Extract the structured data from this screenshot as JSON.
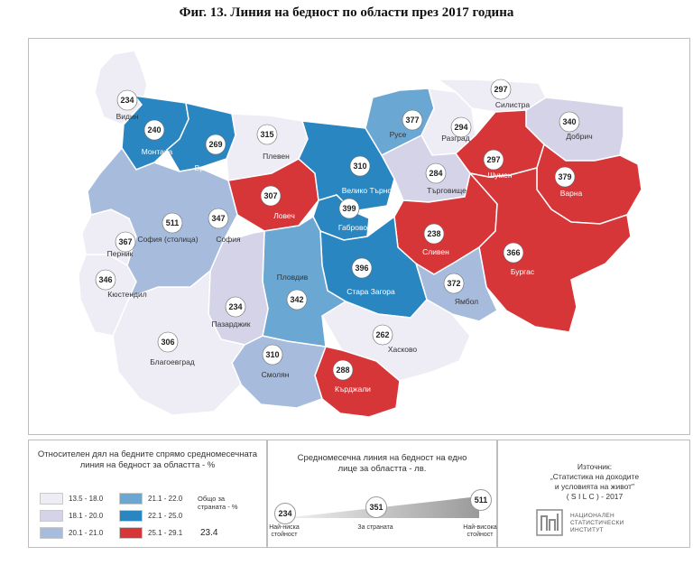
{
  "title": "Фиг. 13. Линия на бедност по области през 2017 година",
  "colors": {
    "c1": "#eeecf4",
    "c2": "#d4d3e8",
    "c3": "#a7bcdc",
    "c4": "#6ba7d3",
    "c5": "#2a86c0",
    "c6": "#d63638"
  },
  "regions": [
    {
      "name": "Видин",
      "value": "234",
      "cls": "c1"
    },
    {
      "name": "Монтана",
      "value": "240",
      "cls": "c5"
    },
    {
      "name": "Враца",
      "value": "269",
      "cls": "c5"
    },
    {
      "name": "Плевен",
      "value": "315",
      "cls": "c1"
    },
    {
      "name": "Ловеч",
      "value": "307",
      "cls": "c6"
    },
    {
      "name": "Велико Търново",
      "value": "310",
      "cls": "c5"
    },
    {
      "name": "Габрово",
      "value": "399",
      "cls": "c5"
    },
    {
      "name": "Русе",
      "value": "377",
      "cls": "c4"
    },
    {
      "name": "Разград",
      "value": "294",
      "cls": "c1"
    },
    {
      "name": "Силистра",
      "value": "297",
      "cls": "c1"
    },
    {
      "name": "Добрич",
      "value": "340",
      "cls": "c2"
    },
    {
      "name": "Търговище",
      "value": "284",
      "cls": "c2"
    },
    {
      "name": "Шумен",
      "value": "297",
      "cls": "c6"
    },
    {
      "name": "Варна",
      "value": "379",
      "cls": "c6"
    },
    {
      "name": "Сливен",
      "value": "238",
      "cls": "c6"
    },
    {
      "name": "Бургас",
      "value": "366",
      "cls": "c6"
    },
    {
      "name": "Ямбол",
      "value": "372",
      "cls": "c3"
    },
    {
      "name": "Стара Загора",
      "value": "396",
      "cls": "c5"
    },
    {
      "name": "Хасково",
      "value": "262",
      "cls": "c1"
    },
    {
      "name": "Кърджали",
      "value": "288",
      "cls": "c6"
    },
    {
      "name": "Смолян",
      "value": "310",
      "cls": "c3"
    },
    {
      "name": "Пловдив",
      "value": "342",
      "cls": "c4"
    },
    {
      "name": "Пазарджик",
      "value": "234",
      "cls": "c2"
    },
    {
      "name": "Благоевград",
      "value": "306",
      "cls": "c1"
    },
    {
      "name": "Кюстендил",
      "value": "346",
      "cls": "c1"
    },
    {
      "name": "Перник",
      "value": "367",
      "cls": "c1"
    },
    {
      "name": "София (столица)",
      "value": "511",
      "cls": "c3"
    },
    {
      "name": "София",
      "value": "347",
      "cls": "c3"
    }
  ],
  "legend": {
    "title": "Относителен дял на бедните спрямо средномесечната линия на бедност за областта - %",
    "ranges": [
      {
        "label": "13.5 - 18.0",
        "cls": "c1"
      },
      {
        "label": "18.1 - 20.0",
        "cls": "c2"
      },
      {
        "label": "20.1 - 21.0",
        "cls": "c3"
      },
      {
        "label": "21.1 - 22.0",
        "cls": "c4"
      },
      {
        "label": "22.1 - 25.0",
        "cls": "c5"
      },
      {
        "label": "25.1 - 29.1",
        "cls": "c6"
      }
    ],
    "overall_label": "Общо за страната - %",
    "overall_value": "23.4"
  },
  "poverty_line": {
    "title": "Средномесечна линия на бедност на едно лице за областта - лв.",
    "min_value": "234",
    "min_label": "Най-ниска стойност",
    "country_value": "351",
    "country_label": "За страната",
    "max_value": "511",
    "max_label": "Най-висока стойност"
  },
  "source": {
    "heading": "Източник:",
    "line1": "„Статистика на доходите",
    "line2": "и условията на живот\"",
    "line3": "( S I L C ) - 2017",
    "org_line1": "НАЦИОНАЛЕН",
    "org_line2": "СТАТИСТИЧЕСКИ",
    "org_line3": "ИНСТИТУТ"
  }
}
